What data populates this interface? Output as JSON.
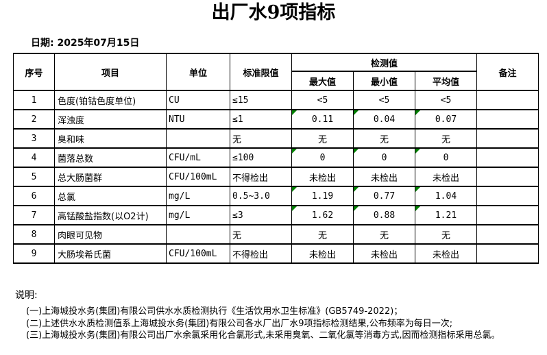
{
  "page": {
    "title": "出厂水9项指标",
    "date_label": "日期: 2025年07月15日"
  },
  "table": {
    "headers": {
      "no": "序号",
      "item": "项目",
      "unit": "单位",
      "limit": "标准限值",
      "detection": "检测值",
      "max": "最大值",
      "min": "最小值",
      "avg": "平均值",
      "remark": "备注"
    },
    "flag_color": "#008000",
    "rows": [
      {
        "no": "1",
        "item": "色度(铂钴色度单位)",
        "unit": "CU",
        "limit": "≤15",
        "max": "<5",
        "min": "<5",
        "avg": "<5",
        "remark": "",
        "flagged": false
      },
      {
        "no": "2",
        "item": "浑浊度",
        "unit": "NTU",
        "limit": "≤1",
        "max": "0.11",
        "min": "0.04",
        "avg": "0.07",
        "remark": "",
        "flagged": true
      },
      {
        "no": "3",
        "item": "臭和味",
        "unit": "",
        "limit": "无",
        "max": "无",
        "min": "无",
        "avg": "无",
        "remark": "",
        "flagged": false
      },
      {
        "no": "4",
        "item": "菌落总数",
        "unit": "CFU/mL",
        "limit": "≤100",
        "max": "0",
        "min": "0",
        "avg": "0",
        "remark": "",
        "flagged": true
      },
      {
        "no": "5",
        "item": "总大肠菌群",
        "unit": "CFU/100mL",
        "limit": "不得检出",
        "max": "未检出",
        "min": "未检出",
        "avg": "未检出",
        "remark": "",
        "flagged": false
      },
      {
        "no": "6",
        "item": "总氯",
        "unit": "mg/L",
        "limit": "0.5~3.0",
        "max": "1.19",
        "min": "0.77",
        "avg": "1.04",
        "remark": "",
        "flagged": true
      },
      {
        "no": "7",
        "item": "高锰酸盐指数(以O2计)",
        "unit": "mg/L",
        "limit": "≤3",
        "max": "1.62",
        "min": "0.88",
        "avg": "1.21",
        "remark": "",
        "flagged": true
      },
      {
        "no": "8",
        "item": "肉眼可见物",
        "unit": "",
        "limit": "无",
        "max": "无",
        "min": "无",
        "avg": "无",
        "remark": "",
        "flagged": false
      },
      {
        "no": "9",
        "item": "大肠埃希氏菌",
        "unit": "CFU/100mL",
        "limit": "不得检出",
        "max": "未检出",
        "min": "未检出",
        "avg": "未检出",
        "remark": "",
        "flagged": false
      }
    ]
  },
  "notes": {
    "label": "说明:",
    "items": [
      "(一)上海城投水务(集团)有限公司供水水质检测执行《生活饮用水卫生标准》(GB5749-2022)；",
      "(二)上述供水水质检测值系上海城投水务(集团)有限公司各水厂出厂水9项指标检测结果,公布频率为每日一次;",
      "(三)上海城投水务(集团)有限公司出厂水余氯采用化合氯形式,未采用臭氧、二氧化氯等消毒方式,因而检测指标采用总氯。"
    ]
  }
}
